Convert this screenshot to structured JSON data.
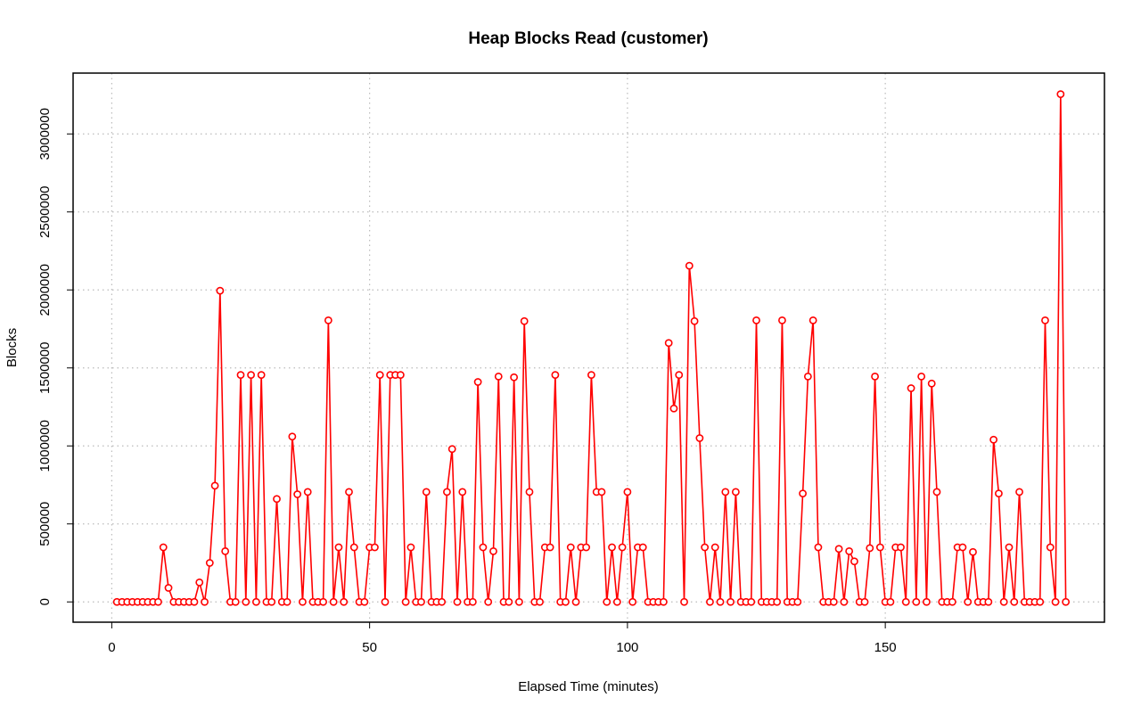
{
  "chart_data": {
    "type": "line",
    "title": "Heap Blocks Read (customer)",
    "xlabel": "Elapsed Time (minutes)",
    "ylabel": "Blocks",
    "xlim": [
      -7.5,
      192.5
    ],
    "ylim": [
      -130000,
      3390000
    ],
    "xticks": [
      0,
      50,
      100,
      150
    ],
    "yticks": [
      0,
      500000,
      1000000,
      1500000,
      2000000,
      2500000,
      3000000
    ],
    "xtick_labels": [
      "0",
      "50",
      "100",
      "150"
    ],
    "ytick_labels": [
      "0",
      "500000",
      "1000000",
      "1500000",
      "2000000",
      "2500000",
      "3000000"
    ],
    "grid": true,
    "marker": "open-circle",
    "color": "#ff0000",
    "series": [
      {
        "x": [
          1,
          2,
          3,
          4,
          5,
          6,
          7,
          8,
          9,
          10,
          11,
          12,
          13,
          14,
          15,
          16,
          17,
          18,
          19,
          20,
          21,
          22,
          23,
          24,
          25,
          26,
          27,
          28,
          29,
          30,
          31,
          32,
          33,
          34,
          35,
          36,
          37,
          38,
          39,
          40,
          41,
          42,
          43,
          44,
          45,
          46,
          47,
          48,
          49,
          50,
          51,
          52,
          53,
          54,
          55,
          56,
          57,
          58,
          59,
          60,
          61,
          62,
          63,
          64,
          65,
          66,
          67,
          68,
          69,
          70,
          71,
          72,
          73,
          74,
          75,
          76,
          77,
          78,
          79,
          80,
          81,
          82,
          83,
          84,
          85,
          86,
          87,
          88,
          89,
          90,
          91,
          92,
          93,
          94,
          95,
          96,
          97,
          98,
          99,
          100,
          101,
          102,
          103,
          104,
          105,
          106,
          107,
          108,
          109,
          110,
          111,
          112,
          113,
          114,
          115,
          116,
          117,
          118,
          119,
          120,
          121,
          122,
          123,
          124,
          125,
          126,
          127,
          128,
          129,
          130,
          131,
          132,
          133,
          134,
          135,
          136,
          137,
          138,
          139,
          140,
          141,
          142,
          143,
          144,
          145,
          146,
          147,
          148,
          149,
          150,
          151,
          152,
          153,
          154,
          155,
          156,
          157,
          158,
          159,
          160,
          161,
          162,
          163,
          164,
          165,
          166,
          167,
          168,
          169,
          170,
          171,
          172,
          173,
          174,
          175,
          176,
          177,
          178,
          179,
          180,
          181,
          182,
          183,
          184,
          185
        ],
        "y": [
          0,
          0,
          0,
          0,
          0,
          0,
          0,
          0,
          0,
          350000,
          90000,
          0,
          0,
          0,
          0,
          0,
          125000,
          0,
          250000,
          745000,
          1995000,
          325000,
          0,
          0,
          1455000,
          0,
          1455000,
          0,
          1455000,
          0,
          0,
          660000,
          0,
          0,
          1060000,
          690000,
          0,
          705000,
          0,
          0,
          0,
          1805000,
          0,
          350000,
          0,
          705000,
          350000,
          0,
          0,
          350000,
          350000,
          1455000,
          0,
          1455000,
          1455000,
          1455000,
          0,
          350000,
          0,
          0,
          705000,
          0,
          0,
          0,
          705000,
          980000,
          0,
          705000,
          0,
          0,
          1410000,
          350000,
          0,
          325000,
          1445000,
          0,
          0,
          1440000,
          0,
          1800000,
          705000,
          0,
          0,
          350000,
          350000,
          1455000,
          0,
          0,
          350000,
          0,
          350000,
          350000,
          1455000,
          705000,
          705000,
          0,
          350000,
          0,
          350000,
          705000,
          0,
          350000,
          350000,
          0,
          0,
          0,
          0,
          1660000,
          1240000,
          1455000,
          0,
          2155000,
          1800000,
          1050000,
          350000,
          0,
          350000,
          0,
          705000,
          0,
          705000,
          0,
          0,
          0,
          1805000,
          0,
          0,
          0,
          0,
          1805000,
          0,
          0,
          0,
          695000,
          1445000,
          1805000,
          350000,
          0,
          0,
          0,
          340000,
          0,
          325000,
          260000,
          0,
          0,
          345000,
          1445000,
          350000,
          0,
          0,
          350000,
          350000,
          0,
          1370000,
          0,
          1445000,
          0,
          1400000,
          705000,
          0,
          0,
          0,
          350000,
          350000,
          0,
          320000,
          0,
          0,
          0,
          1040000,
          695000,
          0,
          350000,
          0,
          705000,
          0,
          0,
          0,
          0,
          1805000,
          350000,
          0,
          3255000,
          0
        ]
      }
    ]
  }
}
